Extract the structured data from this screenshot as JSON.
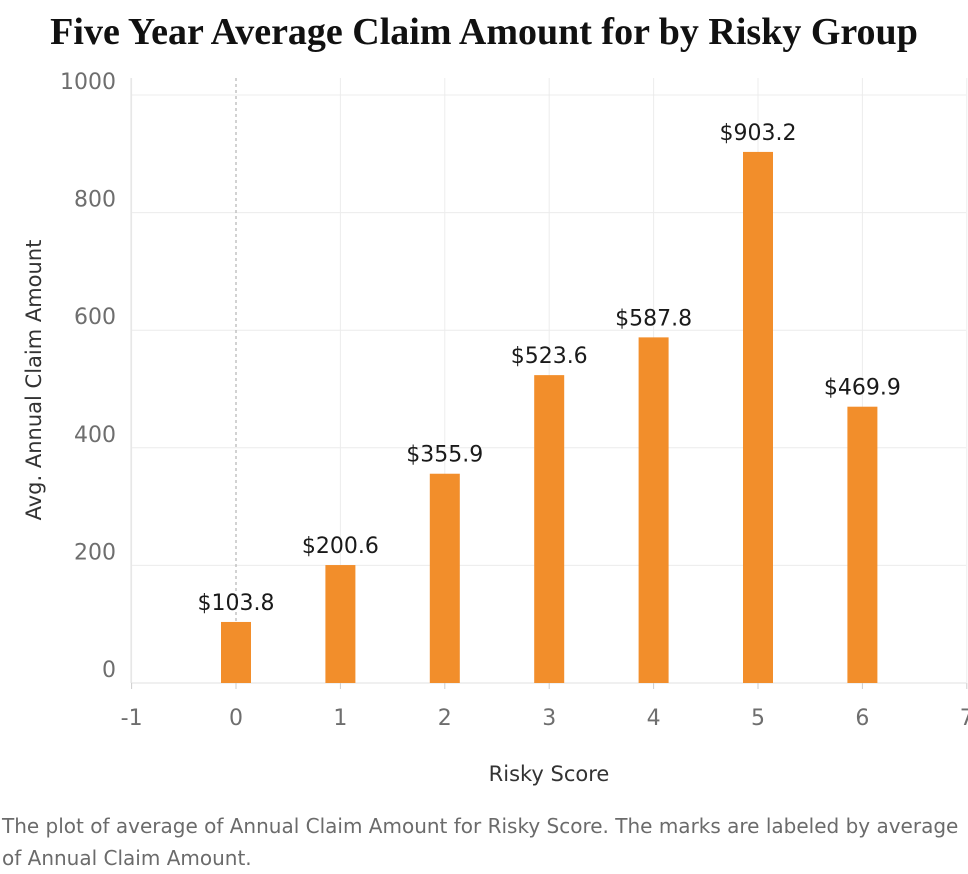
{
  "chart_data": {
    "type": "bar",
    "title": "Five Year Average Claim Amount for by Risky Group",
    "xlabel": "Risky Score",
    "ylabel": "Avg. Annual Claim Amount",
    "x": [
      0,
      1,
      2,
      3,
      4,
      5,
      6
    ],
    "values": [
      103.8,
      200.6,
      355.9,
      523.6,
      587.8,
      903.2,
      469.9
    ],
    "value_labels": [
      "$103.8",
      "$200.6",
      "$355.9",
      "$523.6",
      "$587.8",
      "$903.2",
      "$469.9"
    ],
    "xlim": [
      -1,
      7
    ],
    "ylim": [
      0,
      1000
    ],
    "x_ticks": [
      "-1",
      "0",
      "1",
      "2",
      "3",
      "4",
      "5",
      "6",
      "7"
    ],
    "y_ticks": [
      "0",
      "200",
      "400",
      "600",
      "800",
      "1000"
    ],
    "grid": true,
    "bar_color": "#f28e2b",
    "caption": "The plot of average of Annual Claim Amount for Risky Score.  The marks are labeled by average of Annual Claim Amount."
  }
}
